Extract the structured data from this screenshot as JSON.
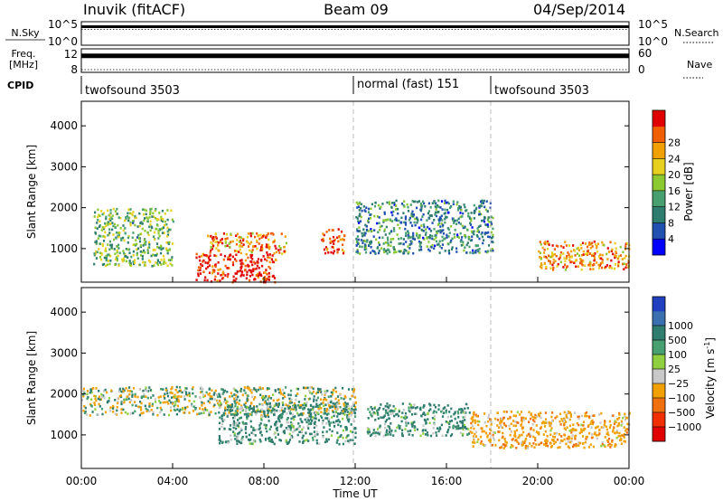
{
  "header": {
    "station": "Inuvik (fitACF)",
    "beam": "Beam 09",
    "date": "04/Sep/2014"
  },
  "nsky_panel": {
    "left_label": "N.Sky",
    "right_label": "N.Search",
    "left_ticks": [
      "10^5",
      "10^0"
    ],
    "right_ticks": [
      "10^5",
      "10^0"
    ],
    "approx_log10_level": 4.2
  },
  "freq_panel": {
    "label_line1": "Freq.",
    "label_line2": "[MHz]",
    "left_ticks": [
      "12",
      "8"
    ],
    "right_label": "Nave",
    "right_ticks": [
      "60",
      "0"
    ],
    "approx_freq_mhz": 11.5
  },
  "cpid": {
    "label": "CPID",
    "segments": [
      {
        "label": "twofsound 3503",
        "start_hour": 0,
        "end_hour": 12
      },
      {
        "label": "normal (fast) 151",
        "start_hour": 12,
        "end_hour": 18
      },
      {
        "label": "twofsound 3503",
        "start_hour": 18,
        "end_hour": 24
      }
    ]
  },
  "chart_data": [
    {
      "type": "heatmap",
      "quantity": "power",
      "ylabel": "Slant Range [km]",
      "yticks": [
        1000,
        2000,
        3000,
        4000
      ],
      "ylim": [
        180,
        4600
      ],
      "xlim": [
        0,
        24
      ],
      "colorbar": {
        "label": "Power [dB]",
        "range": [
          0,
          32
        ],
        "ticks": [
          "4",
          "8",
          "12",
          "16",
          "20",
          "24",
          "28"
        ],
        "colors": [
          "#0000ff",
          "#2050b0",
          "#2e7d6e",
          "#48a070",
          "#8cc830",
          "#e8d020",
          "#f0a000",
          "#f06000",
          "#e00000"
        ]
      },
      "approx_echo_regions": [
        {
          "start_hour": 5.0,
          "end_hour": 8.5,
          "range_km": [
            200,
            900
          ],
          "power_db": 30
        },
        {
          "start_hour": 5.5,
          "end_hour": 9.0,
          "range_km": [
            900,
            1400
          ],
          "power_db": 24
        },
        {
          "start_hour": 10.5,
          "end_hour": 11.5,
          "range_km": [
            900,
            1500
          ],
          "power_db": 28
        },
        {
          "start_hour": 0.5,
          "end_hour": 4.0,
          "range_km": [
            600,
            2000
          ],
          "power_db": 14
        },
        {
          "start_hour": 12.0,
          "end_hour": 18.0,
          "range_km": [
            900,
            2200
          ],
          "power_db": 10
        },
        {
          "start_hour": 20.0,
          "end_hour": 24.0,
          "range_km": [
            500,
            1200
          ],
          "power_db": 24
        }
      ]
    },
    {
      "type": "heatmap",
      "quantity": "velocity",
      "ylabel": "Slant Range [km]",
      "yticks": [
        1000,
        2000,
        3000,
        4000
      ],
      "ylim": [
        180,
        4600
      ],
      "xlim": [
        0,
        24
      ],
      "xticks": [
        "00:00",
        "04:00",
        "08:00",
        "12:00",
        "16:00",
        "20:00",
        "00:00"
      ],
      "xlabel": "Time UT",
      "colorbar": {
        "label": "Velocity [m s",
        "label_superscript": "-1",
        "label_suffix": "]",
        "ticks": [
          "1000",
          "500",
          "100",
          "25",
          "−25",
          "−100",
          "−500",
          "−1000"
        ],
        "colors": [
          "#2040c0",
          "#3a6fb0",
          "#2e7d6e",
          "#48a070",
          "#90d040",
          "#c8c8c8",
          "#f0a000",
          "#f07010",
          "#f03000",
          "#e00000"
        ]
      },
      "approx_echo_regions": [
        {
          "start_hour": 0.0,
          "end_hour": 12.0,
          "range_km": [
            1500,
            2200
          ],
          "velocity": 0
        },
        {
          "start_hour": 6.0,
          "end_hour": 12.0,
          "range_km": [
            800,
            1800
          ],
          "velocity": 200
        },
        {
          "start_hour": 12.5,
          "end_hour": 17.0,
          "range_km": [
            1000,
            1800
          ],
          "velocity": 200
        },
        {
          "start_hour": 17.0,
          "end_hour": 24.0,
          "range_km": [
            700,
            1600
          ],
          "velocity": -300
        }
      ]
    }
  ]
}
